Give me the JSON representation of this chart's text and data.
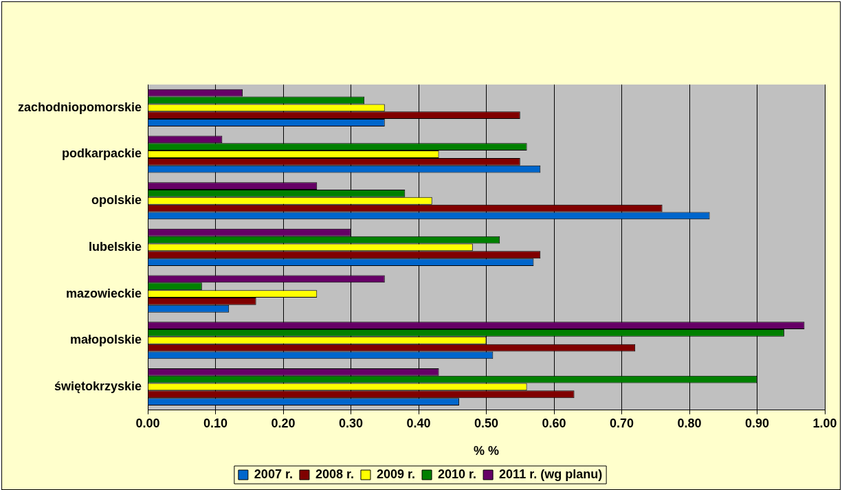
{
  "chart_data": {
    "type": "bar",
    "orientation": "horizontal",
    "xlabel": "% %",
    "categories": [
      "zachodniopomorskie",
      "podkarpackie",
      "opolskie",
      "lubelskie",
      "mazowieckie",
      "małopolskie",
      "świętokrzyskie"
    ],
    "series": [
      {
        "name": "2007 r.",
        "color": "#0066cc",
        "values": [
          0.35,
          0.58,
          0.83,
          0.57,
          0.12,
          0.51,
          0.46
        ]
      },
      {
        "name": "2008 r.",
        "color": "#800000",
        "values": [
          0.55,
          0.55,
          0.76,
          0.58,
          0.16,
          0.72,
          0.63
        ]
      },
      {
        "name": "2009 r.",
        "color": "#ffff00",
        "values": [
          0.35,
          0.43,
          0.42,
          0.48,
          0.25,
          0.5,
          0.56
        ]
      },
      {
        "name": "2010 r.",
        "color": "#008000",
        "values": [
          0.32,
          0.56,
          0.38,
          0.52,
          0.08,
          0.94,
          0.9
        ]
      },
      {
        "name": "2011 r. (wg planu)",
        "color": "#660066",
        "values": [
          0.14,
          0.11,
          0.25,
          0.3,
          0.35,
          0.97,
          0.43
        ]
      }
    ],
    "xlim": [
      0,
      1
    ],
    "xticks": [
      {
        "value": 0,
        "label": "0.00"
      },
      {
        "value": 0.1,
        "label": "0.10"
      },
      {
        "value": 0.2,
        "label": "0.20"
      },
      {
        "value": 0.3,
        "label": "0.30"
      },
      {
        "value": 0.4,
        "label": "0.40"
      },
      {
        "value": 0.5,
        "label": "0.50"
      },
      {
        "value": 0.6,
        "label": "0.60"
      },
      {
        "value": 0.7,
        "label": "0.70"
      },
      {
        "value": 0.8,
        "label": "0.80"
      },
      {
        "value": 0.9,
        "label": "0.90"
      },
      {
        "value": 1,
        "label": "1.00"
      }
    ],
    "grid": "x",
    "legend": "bottom"
  }
}
